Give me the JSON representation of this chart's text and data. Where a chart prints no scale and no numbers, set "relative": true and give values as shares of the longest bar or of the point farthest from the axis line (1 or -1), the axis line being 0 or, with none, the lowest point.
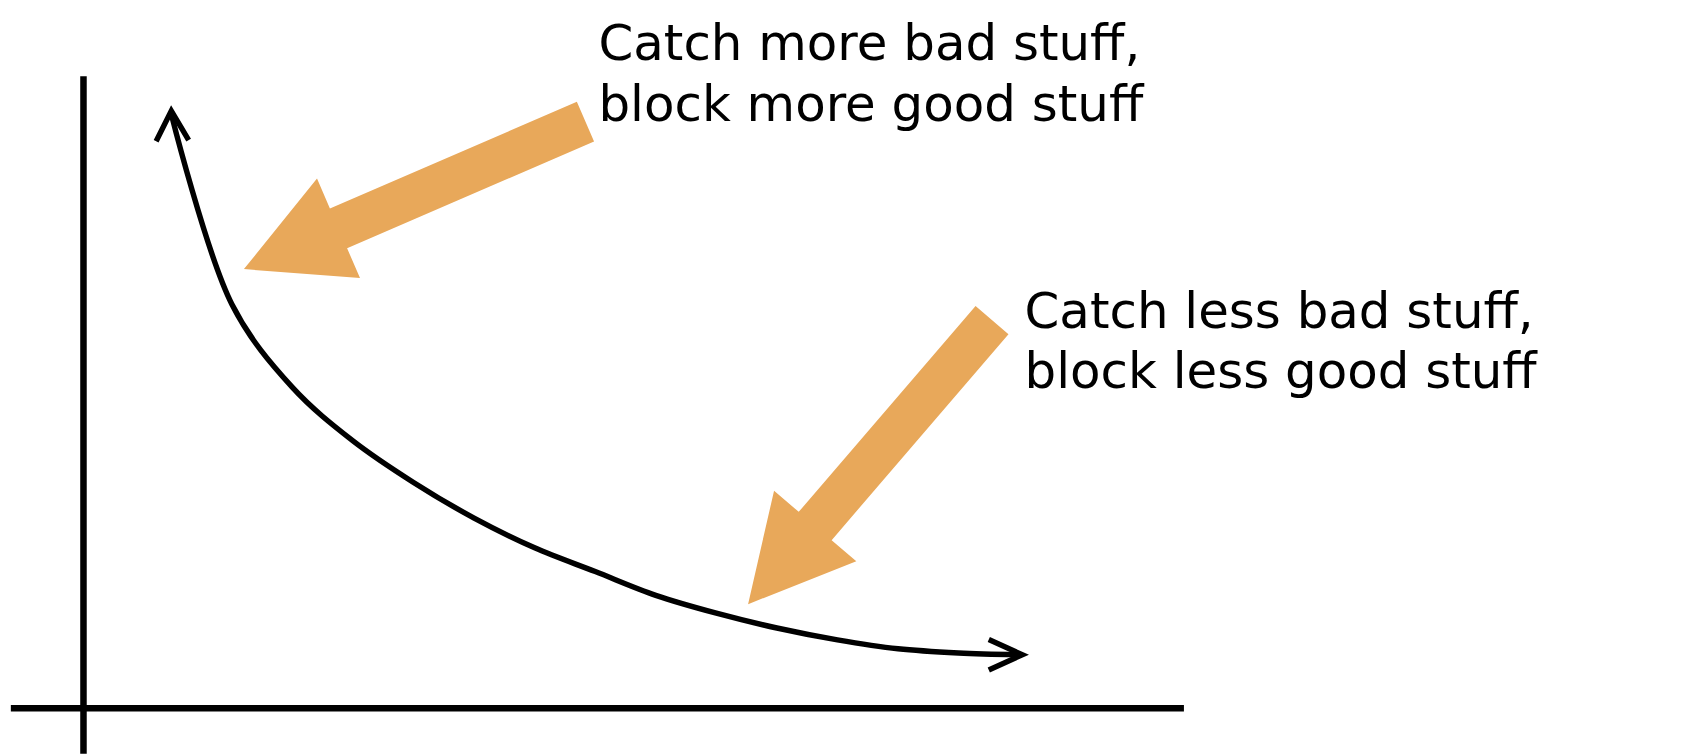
{
  "chart_data": {
    "type": "line",
    "relative": true,
    "categories": [
      null,
      null,
      null,
      null,
      null,
      null,
      null,
      null,
      null,
      null,
      null,
      null,
      null,
      null,
      null
    ],
    "series": [
      {
        "color": "#000000",
        "values": [
          1,
          0.68,
          0.54,
          0.45,
          0.38,
          0.32,
          0.27,
          0.23,
          0.19,
          0.16,
          0.135,
          0.115,
          0.1,
          0.093,
          0.09
        ]
      }
    ],
    "annotations": [
      "Catch more bad stuff, block more good stuff",
      "Catch less bad stuff, block less good stuff"
    ]
  }
}
